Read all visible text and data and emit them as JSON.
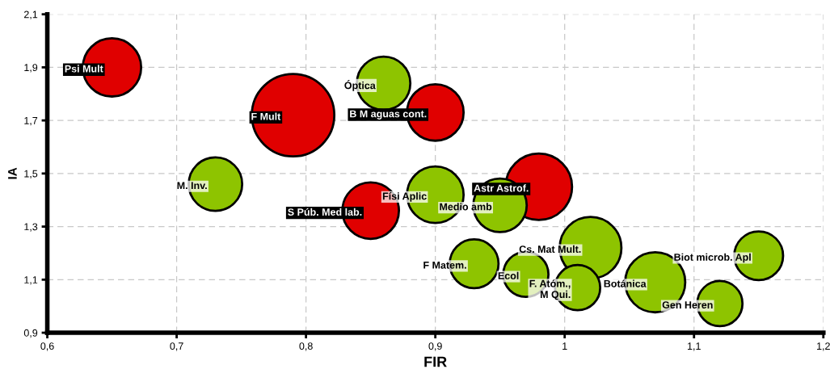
{
  "chart_data": {
    "type": "bubble",
    "xlabel": "FIR",
    "ylabel": "IA",
    "xlim": [
      0.6,
      1.2
    ],
    "ylim": [
      0.9,
      2.1
    ],
    "xticks": [
      {
        "value": 0.6,
        "label": "0,6"
      },
      {
        "value": 0.7,
        "label": "0,7"
      },
      {
        "value": 0.8,
        "label": "0,8"
      },
      {
        "value": 0.9,
        "label": "0,9"
      },
      {
        "value": 1.0,
        "label": "1"
      },
      {
        "value": 1.1,
        "label": "1,1"
      },
      {
        "value": 1.2,
        "label": "1,2"
      }
    ],
    "yticks": [
      {
        "value": 0.9,
        "label": "0,9"
      },
      {
        "value": 1.1,
        "label": "1,1"
      },
      {
        "value": 1.3,
        "label": "1,3"
      },
      {
        "value": 1.5,
        "label": "1,5"
      },
      {
        "value": 1.7,
        "label": "1,7"
      },
      {
        "value": 1.9,
        "label": "1,9"
      },
      {
        "value": 2.1,
        "label": "2,1"
      }
    ],
    "grid": true,
    "series": [
      {
        "color": "#e00000",
        "x": [
          0.65,
          0.79,
          0.9,
          0.85,
          0.98
        ],
        "values": [
          1.9,
          1.72,
          1.73,
          1.36,
          1.45
        ],
        "sizes": [
          0.5,
          1,
          0.47,
          0.47,
          0.65
        ]
      },
      {
        "color": "#8ec400",
        "x": [
          0.86,
          0.73,
          0.9,
          0.95,
          1.02,
          0.93,
          0.97,
          1.01,
          1.07,
          1.12,
          1.15
        ],
        "values": [
          1.84,
          1.46,
          1.42,
          1.38,
          1.22,
          1.16,
          1.12,
          1.07,
          1.09,
          1.01,
          1.19
        ],
        "sizes": [
          0.42,
          0.42,
          0.47,
          0.42,
          0.56,
          0.35,
          0.3,
          0.3,
          0.53,
          0.3,
          0.35
        ]
      }
    ],
    "annotations": [
      {
        "text": "Psi Mult",
        "x": 0.65,
        "y": 1.9
      },
      {
        "text": "F Mult",
        "x": 0.79,
        "y": 1.72
      },
      {
        "text": "B M aguas cont.",
        "x": 0.9,
        "y": 1.73
      },
      {
        "text": "S Púb. Med lab.",
        "x": 0.85,
        "y": 1.36
      },
      {
        "text": "Astr Astrof.",
        "x": 0.98,
        "y": 1.45
      },
      {
        "text": "Óptica",
        "x": 0.86,
        "y": 1.84
      },
      {
        "text": "M. Inv.",
        "x": 0.73,
        "y": 1.46
      },
      {
        "text": "Físi Aplic",
        "x": 0.9,
        "y": 1.42
      },
      {
        "text": "Medio amb",
        "x": 0.95,
        "y": 1.38
      },
      {
        "text": "Cs. Mat Mult.",
        "x": 1.02,
        "y": 1.22
      },
      {
        "text": "F Matem.",
        "x": 0.93,
        "y": 1.16
      },
      {
        "text": "Ecol",
        "x": 0.97,
        "y": 1.12
      },
      {
        "text": "F. Atóm.,\nM Qui.",
        "x": 1.01,
        "y": 1.07
      },
      {
        "text": "Botánica",
        "x": 1.07,
        "y": 1.09
      },
      {
        "text": "Gen Heren",
        "x": 1.12,
        "y": 1.01
      },
      {
        "text": "Biot microb. Apl",
        "x": 1.15,
        "y": 1.19
      }
    ]
  }
}
